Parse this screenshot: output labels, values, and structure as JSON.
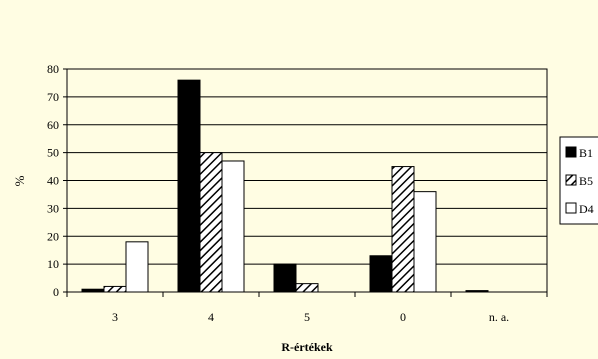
{
  "chart_data": {
    "type": "bar",
    "categories": [
      "3",
      "4",
      "5",
      "0",
      "n. a."
    ],
    "series": [
      {
        "name": "B1",
        "values": [
          1,
          76,
          10,
          13,
          0.5
        ],
        "fill": "solid"
      },
      {
        "name": "B5",
        "values": [
          2,
          50,
          3,
          45,
          0
        ],
        "fill": "hatch"
      },
      {
        "name": "D4",
        "values": [
          18,
          47,
          0,
          36,
          0
        ],
        "fill": "empty"
      }
    ],
    "xlabel": "R-értékek",
    "ylabel": "%",
    "ylim": [
      0,
      80
    ],
    "yticks": [
      "0",
      "10",
      "20",
      "30",
      "40",
      "50",
      "60",
      "70",
      "80"
    ],
    "grid": true,
    "legend": "right",
    "colors": {
      "background": "#fffde3",
      "bar_fill": "#000000",
      "empty_fill": "#ffffff"
    }
  }
}
